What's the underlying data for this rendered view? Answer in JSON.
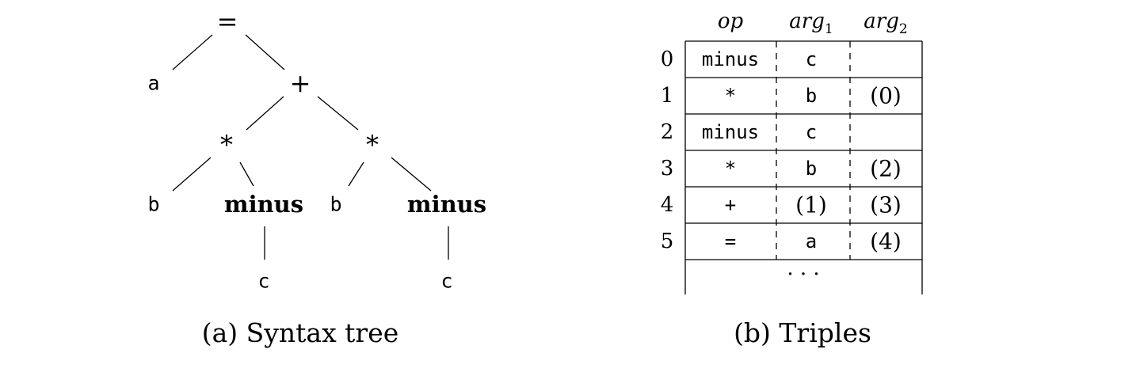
{
  "tree": {
    "nodes": [
      {
        "id": "root-eq",
        "label": "=",
        "style": "op",
        "name": "tree-node-equals"
      },
      {
        "id": "a",
        "label": "a",
        "style": "mono",
        "name": "tree-node-a"
      },
      {
        "id": "plus",
        "label": "+",
        "style": "op",
        "name": "tree-node-plus"
      },
      {
        "id": "star-left",
        "label": "*",
        "style": "op",
        "name": "tree-node-star-left"
      },
      {
        "id": "star-right",
        "label": "*",
        "style": "op",
        "name": "tree-node-star-right"
      },
      {
        "id": "b-left",
        "label": "b",
        "style": "mono",
        "name": "tree-node-b-left"
      },
      {
        "id": "minus-left",
        "label": "minus",
        "style": "bold",
        "name": "tree-node-minus-left"
      },
      {
        "id": "b-right",
        "label": "b",
        "style": "mono",
        "name": "tree-node-b-right"
      },
      {
        "id": "minus-right",
        "label": "minus",
        "style": "bold",
        "name": "tree-node-minus-right"
      },
      {
        "id": "c-left",
        "label": "c",
        "style": "mono",
        "name": "tree-node-c-left"
      },
      {
        "id": "c-right",
        "label": "c",
        "style": "mono",
        "name": "tree-node-c-right"
      }
    ],
    "edges": [
      [
        "root-eq",
        "a"
      ],
      [
        "root-eq",
        "plus"
      ],
      [
        "plus",
        "star-left"
      ],
      [
        "plus",
        "star-right"
      ],
      [
        "star-left",
        "b-left"
      ],
      [
        "star-left",
        "minus-left"
      ],
      [
        "star-right",
        "b-right"
      ],
      [
        "star-right",
        "minus-right"
      ],
      [
        "minus-left",
        "c-left"
      ],
      [
        "minus-right",
        "c-right"
      ]
    ],
    "caption": "(a) Syntax tree"
  },
  "triples": {
    "headers": [
      {
        "base": "op",
        "sub": ""
      },
      {
        "base": "arg",
        "sub": "1"
      },
      {
        "base": "arg",
        "sub": "2"
      }
    ],
    "rows": [
      {
        "index": "0",
        "op": "minus",
        "arg1": "c",
        "arg2": ""
      },
      {
        "index": "1",
        "op": "*",
        "arg1": "b",
        "arg2": "(0)"
      },
      {
        "index": "2",
        "op": "minus",
        "arg1": "c",
        "arg2": ""
      },
      {
        "index": "3",
        "op": "*",
        "arg1": "b",
        "arg2": "(2)"
      },
      {
        "index": "4",
        "op": "+",
        "arg1": "(1)",
        "arg2": "(3)"
      },
      {
        "index": "5",
        "op": "=",
        "arg1": "a",
        "arg2": "(4)"
      }
    ],
    "ellipsis": "· · ·",
    "caption": "(b) Triples"
  }
}
